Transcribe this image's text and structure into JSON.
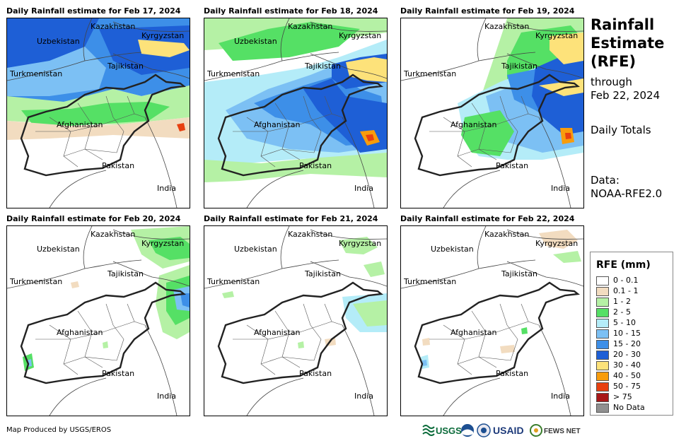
{
  "panels": [
    {
      "title": "Daily Rainfall estimate for Feb 17, 2024"
    },
    {
      "title": "Daily Rainfall estimate for Feb 18, 2024"
    },
    {
      "title": "Daily Rainfall estimate for Feb 19, 2024"
    },
    {
      "title": "Daily Rainfall estimate for Feb 20, 2024"
    },
    {
      "title": "Daily Rainfall estimate for Feb 21, 2024"
    },
    {
      "title": "Daily Rainfall estimate for Feb 22, 2024"
    }
  ],
  "map_labels": {
    "kazakhstan": "Kazakhstan",
    "kyrgyzstan": "Kyrgyzstan",
    "uzbekistan": "Uzbekistan",
    "tajikistan": "Tajikistan",
    "turkmenistan": "Turkmenistan",
    "afghanistan": "Afghanistan",
    "pakistan": "Pakistan",
    "india": "India"
  },
  "side": {
    "title_line1": "Rainfall",
    "title_line2": "Estimate",
    "title_line3": "(RFE)",
    "through": "through",
    "through_date": "Feb 22, 2024",
    "daily_totals": "Daily Totals",
    "data_label": "Data:",
    "data_source": "NOAA-RFE2.0"
  },
  "legend": {
    "title": "RFE (mm)",
    "items": [
      {
        "label": "0 - 0.1",
        "color": "#ffffff"
      },
      {
        "label": "0.1 - 1",
        "color": "#f2dcc0"
      },
      {
        "label": "1 - 2",
        "color": "#b5f1a5"
      },
      {
        "label": "2 - 5",
        "color": "#55e065"
      },
      {
        "label": "5 - 10",
        "color": "#b4ecf8"
      },
      {
        "label": "10 - 15",
        "color": "#7cc0f4"
      },
      {
        "label": "15 - 20",
        "color": "#3d8fe8"
      },
      {
        "label": "20 - 30",
        "color": "#1e5fd6"
      },
      {
        "label": "30 - 40",
        "color": "#fde27a"
      },
      {
        "label": "40 - 50",
        "color": "#f89c0c"
      },
      {
        "label": "50 - 75",
        "color": "#e84010"
      },
      {
        "label": "> 75",
        "color": "#a81818"
      },
      {
        "label": "No Data",
        "color": "#909090"
      }
    ]
  },
  "footer": {
    "credit": "Map Produced by USGS/EROS",
    "logo_usgs": "USGS",
    "logo_usaid": "USAID",
    "logo_fewsnet": "FEWS NET"
  }
}
